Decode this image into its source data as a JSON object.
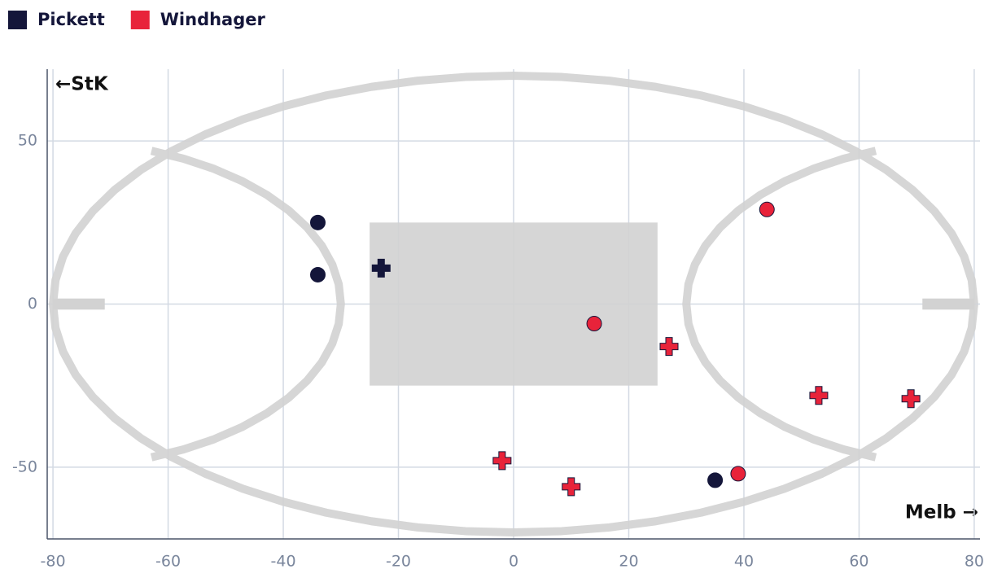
{
  "chart_data": {
    "type": "scatter",
    "series": [
      {
        "name": "Pickett",
        "color": "#14163a",
        "x": [
          -34,
          -34,
          35,
          -23
        ],
        "y": [
          25,
          9,
          -54,
          11
        ],
        "markers": [
          "circle",
          "circle",
          "circle",
          "cross"
        ]
      },
      {
        "name": "Windhager",
        "color": "#e8233a",
        "x": [
          44,
          14,
          39,
          27,
          53,
          69,
          -2,
          10
        ],
        "y": [
          29,
          -6,
          -52,
          -13,
          -28,
          -29,
          -48,
          -56
        ],
        "markers": [
          "circle",
          "circle",
          "circle",
          "cross",
          "cross",
          "cross",
          "cross",
          "cross"
        ]
      }
    ],
    "xlim": [
      -81,
      81
    ],
    "ylim": [
      -72,
      72
    ],
    "xticks": [
      -80,
      -60,
      -40,
      -20,
      0,
      20,
      40,
      60,
      80
    ],
    "yticks": [
      -50,
      0,
      50
    ],
    "grid": true,
    "annotations": [
      "←StK",
      "Melb →"
    ]
  }
}
